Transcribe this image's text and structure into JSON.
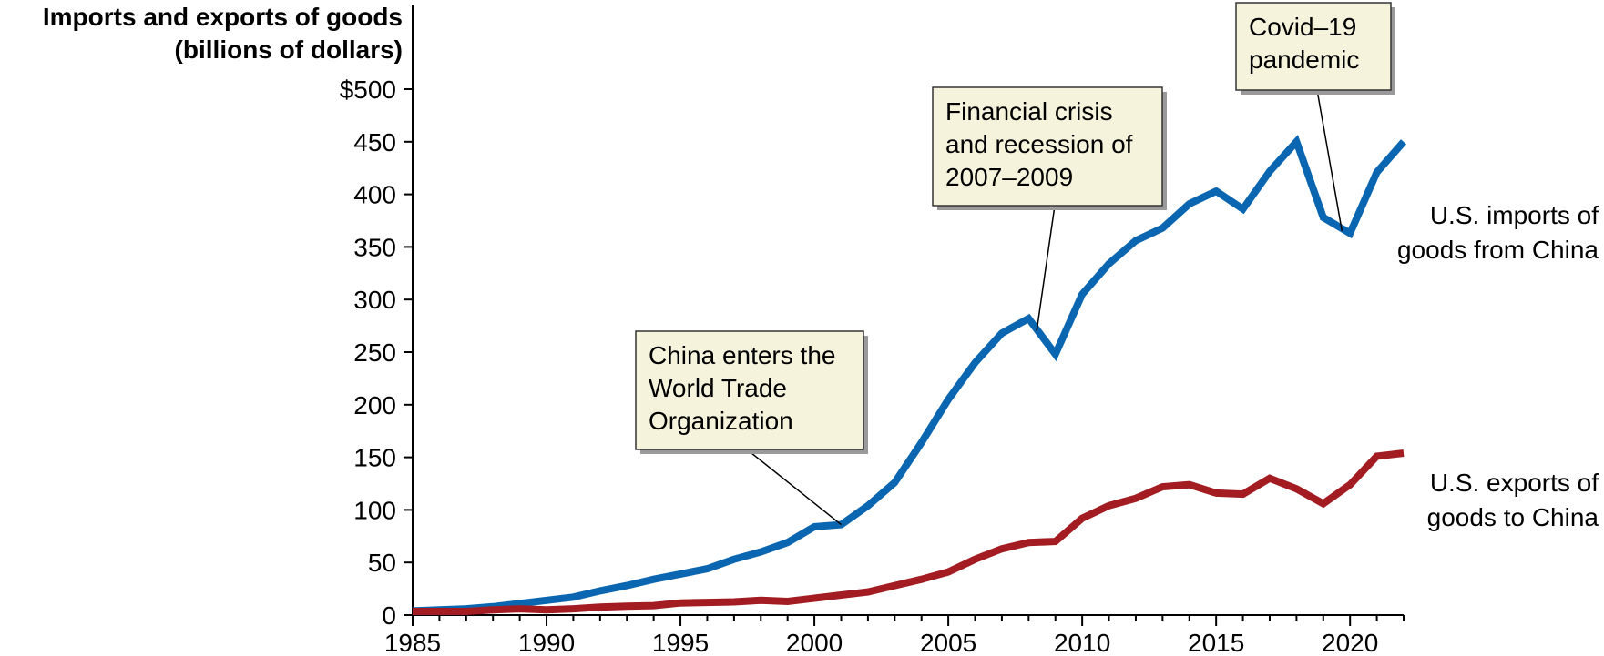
{
  "chart_data": {
    "type": "line",
    "ylabel": [
      "Imports and exports of goods",
      "(billions of dollars)"
    ],
    "xlim": [
      1985,
      2022
    ],
    "ylim": [
      0,
      500
    ],
    "x_ticks": [
      1985,
      1990,
      1995,
      2000,
      2005,
      2010,
      2015,
      2020
    ],
    "y_ticks": [
      0,
      50,
      100,
      150,
      200,
      250,
      300,
      350,
      400,
      450,
      500
    ],
    "y_tick_labels": [
      "0",
      "50",
      "100",
      "150",
      "200",
      "250",
      "300",
      "350",
      "400",
      "450",
      "$500"
    ],
    "grid": false,
    "legend": "none",
    "series": [
      {
        "name": [
          "U.S. imports of",
          "goods from China"
        ],
        "color": "#0a66b0",
        "x": [
          1985,
          1986,
          1987,
          1988,
          1989,
          1990,
          1991,
          1992,
          1993,
          1994,
          1995,
          1996,
          1997,
          1998,
          1999,
          2000,
          2001,
          2002,
          2003,
          2004,
          2005,
          2006,
          2007,
          2008,
          2009,
          2010,
          2011,
          2012,
          2013,
          2014,
          2015,
          2016,
          2017,
          2018,
          2019,
          2020,
          2021,
          2022
        ],
        "values": [
          4,
          5,
          6,
          8,
          11,
          14,
          17,
          23,
          28,
          34,
          39,
          44,
          53,
          60,
          69,
          84,
          86,
          104,
          126,
          164,
          205,
          240,
          268,
          282,
          248,
          305,
          334,
          356,
          368,
          391,
          403,
          386,
          422,
          450,
          378,
          363,
          421,
          450
        ]
      },
      {
        "name": [
          "U.S. exports of",
          "goods to China"
        ],
        "color": "#a31c22",
        "x": [
          1985,
          1986,
          1987,
          1988,
          1989,
          1990,
          1991,
          1992,
          1993,
          1994,
          1995,
          1996,
          1997,
          1998,
          1999,
          2000,
          2001,
          2002,
          2003,
          2004,
          2005,
          2006,
          2007,
          2008,
          2009,
          2010,
          2011,
          2012,
          2013,
          2014,
          2015,
          2016,
          2017,
          2018,
          2019,
          2020,
          2021,
          2022
        ],
        "values": [
          3.5,
          3.5,
          3.5,
          5,
          6,
          5,
          6,
          7.5,
          8.5,
          9,
          11.5,
          12,
          12.5,
          14,
          13,
          16,
          19,
          22,
          28,
          34,
          41,
          53,
          63,
          69,
          70,
          92,
          104,
          111,
          122,
          124,
          116,
          115,
          130,
          120,
          106,
          124,
          151,
          154
        ]
      }
    ],
    "annotations": [
      {
        "text": [
          "China enters the",
          "World Trade",
          "Organization"
        ],
        "point": [
          2001,
          86
        ]
      },
      {
        "text": [
          "Financial crisis",
          "and recession of",
          "2007–2009"
        ],
        "point": [
          2008.3,
          270
        ]
      },
      {
        "text": [
          "Covid–19",
          "pandemic"
        ],
        "point": [
          2019.7,
          365
        ]
      }
    ]
  }
}
